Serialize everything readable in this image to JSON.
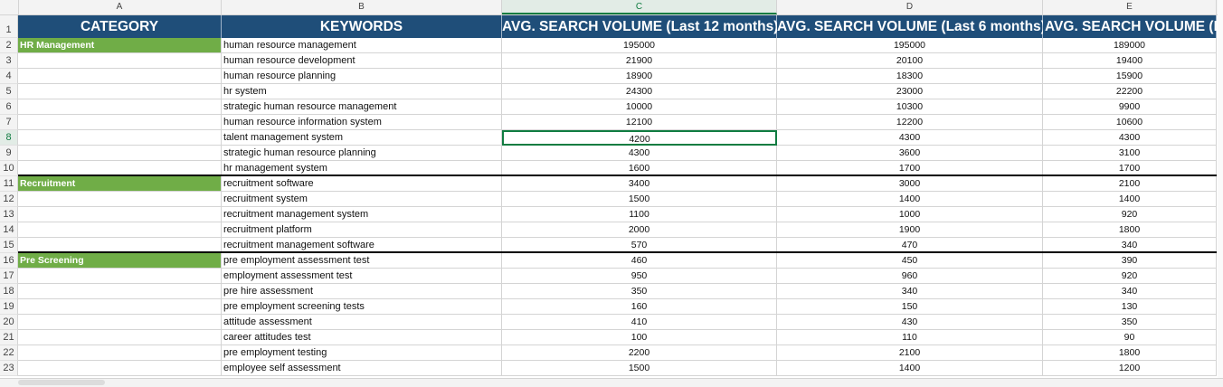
{
  "columns": [
    "A",
    "B",
    "C",
    "D",
    "E"
  ],
  "active_column": "C",
  "active_row": 8,
  "headers": {
    "category": "CATEGORY",
    "keywords": "KEYWORDS",
    "c": "AVG. SEARCH VOLUME (Last 12 months)",
    "d": "AVG. SEARCH VOLUME (Last 6 months)",
    "e": "AVG. SEARCH VOLUME (L"
  },
  "rows": [
    {
      "n": "2",
      "category": "HR Management",
      "keyword": "human resource management",
      "c": "195000",
      "d": "195000",
      "e": "189000"
    },
    {
      "n": "3",
      "category": "",
      "keyword": "human resource development",
      "c": "21900",
      "d": "20100",
      "e": "19400"
    },
    {
      "n": "4",
      "category": "",
      "keyword": "human resource planning",
      "c": "18900",
      "d": "18300",
      "e": "15900"
    },
    {
      "n": "5",
      "category": "",
      "keyword": "hr system",
      "c": "24300",
      "d": "23000",
      "e": "22200"
    },
    {
      "n": "6",
      "category": "",
      "keyword": "strategic human resource management",
      "c": "10000",
      "d": "10300",
      "e": "9900"
    },
    {
      "n": "7",
      "category": "",
      "keyword": "human resource information system",
      "c": "12100",
      "d": "12200",
      "e": "10600"
    },
    {
      "n": "8",
      "category": "",
      "keyword": "talent management system",
      "c": "4200",
      "d": "4300",
      "e": "4300"
    },
    {
      "n": "9",
      "category": "",
      "keyword": "strategic human resource planning",
      "c": "4300",
      "d": "3600",
      "e": "3100"
    },
    {
      "n": "10",
      "category": "",
      "keyword": "hr management system",
      "c": "1600",
      "d": "1700",
      "e": "1700"
    },
    {
      "n": "11",
      "category": "Recruitment",
      "keyword": "recruitment software",
      "c": "3400",
      "d": "3000",
      "e": "2100"
    },
    {
      "n": "12",
      "category": "",
      "keyword": "recruitment system",
      "c": "1500",
      "d": "1400",
      "e": "1400"
    },
    {
      "n": "13",
      "category": "",
      "keyword": "recruitment management system",
      "c": "1100",
      "d": "1000",
      "e": "920"
    },
    {
      "n": "14",
      "category": "",
      "keyword": "recruitment platform",
      "c": "2000",
      "d": "1900",
      "e": "1800"
    },
    {
      "n": "15",
      "category": "",
      "keyword": "recruitment management software",
      "c": "570",
      "d": "470",
      "e": "340"
    },
    {
      "n": "16",
      "category": "Pre Screening",
      "keyword": "pre employment assessment test",
      "c": "460",
      "d": "450",
      "e": "390"
    },
    {
      "n": "17",
      "category": "",
      "keyword": "employment assessment test",
      "c": "950",
      "d": "960",
      "e": "920"
    },
    {
      "n": "18",
      "category": "",
      "keyword": "pre hire assessment",
      "c": "350",
      "d": "340",
      "e": "340"
    },
    {
      "n": "19",
      "category": "",
      "keyword": "pre employment screening tests",
      "c": "160",
      "d": "150",
      "e": "130"
    },
    {
      "n": "20",
      "category": "",
      "keyword": "attitude assessment",
      "c": "410",
      "d": "430",
      "e": "350"
    },
    {
      "n": "21",
      "category": "",
      "keyword": "career attitudes test",
      "c": "100",
      "d": "110",
      "e": "90"
    },
    {
      "n": "22",
      "category": "",
      "keyword": "pre employment testing",
      "c": "2200",
      "d": "2100",
      "e": "1800"
    },
    {
      "n": "23",
      "category": "",
      "keyword": "employee self assessment",
      "c": "1500",
      "d": "1400",
      "e": "1200"
    }
  ],
  "colors": {
    "header_bg": "#1f4e79",
    "category_bg": "#70ad47",
    "selection": "#107c41"
  }
}
